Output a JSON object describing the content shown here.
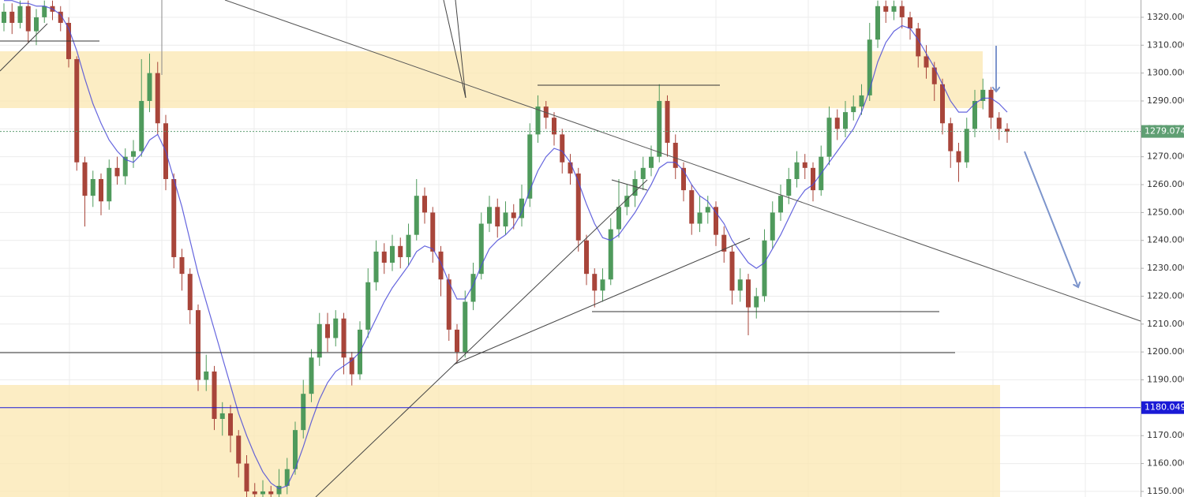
{
  "chart_data": {
    "type": "candlestick",
    "ylim": [
      1148,
      1326.2
    ],
    "yticks": [
      {
        "value": 1150,
        "label": "1150.000"
      },
      {
        "value": 1160,
        "label": "1160.000"
      },
      {
        "value": 1170,
        "label": "1170.000"
      },
      {
        "value": 1190,
        "label": "1190.000"
      },
      {
        "value": 1200,
        "label": "1200.000"
      },
      {
        "value": 1210,
        "label": "1210.000"
      },
      {
        "value": 1220,
        "label": "1220.000"
      },
      {
        "value": 1230,
        "label": "1230.000"
      },
      {
        "value": 1240,
        "label": "1240.000"
      },
      {
        "value": 1250,
        "label": "1250.000"
      },
      {
        "value": 1260,
        "label": "1260.000"
      },
      {
        "value": 1270,
        "label": "1270.000"
      },
      {
        "value": 1280,
        "label": "1280.000"
      },
      {
        "value": 1290,
        "label": "1290.000"
      },
      {
        "value": 1300,
        "label": "1300.000"
      },
      {
        "value": 1310,
        "label": "1310.000"
      },
      {
        "value": 1320,
        "label": "1320.000"
      }
    ],
    "grid": true,
    "up_color": "#4f9a5c",
    "down_color": "#a8453a",
    "open": [
      1318,
      1322,
      1318,
      1324,
      1315,
      1320,
      1324,
      1322,
      1318,
      1305,
      1268,
      1256,
      1262,
      1254,
      1266,
      1263,
      1270,
      1272,
      1290,
      1300,
      1282,
      1262,
      1234,
      1228,
      1215,
      1190,
      1193,
      1176,
      1178,
      1170,
      1160,
      1150,
      1149,
      1150,
      1149,
      1152,
      1158,
      1172,
      1185,
      1198,
      1210,
      1205,
      1212,
      1198,
      1192,
      1208,
      1225,
      1236,
      1232,
      1238,
      1234,
      1242,
      1256,
      1250,
      1236,
      1226,
      1208,
      1200,
      1218,
      1228,
      1246,
      1252,
      1245,
      1250,
      1248,
      1255,
      1278,
      1288,
      1284,
      1278,
      1268,
      1264,
      1240,
      1228,
      1222,
      1226,
      1244,
      1252,
      1256,
      1262,
      1266,
      1270,
      1290,
      1275,
      1266,
      1258,
      1246,
      1250,
      1252,
      1242,
      1236,
      1222,
      1226,
      1216,
      1220,
      1240,
      1250,
      1256,
      1262,
      1268,
      1266,
      1258,
      1270,
      1284,
      1280,
      1286,
      1288,
      1292,
      1312,
      1324,
      1322,
      1324,
      1320,
      1316,
      1306,
      1302,
      1296,
      1282,
      1272,
      1268,
      1280,
      1290,
      1294,
      1284,
      1280
    ],
    "high": [
      1325,
      1325,
      1326,
      1326,
      1323,
      1326,
      1326,
      1324,
      1320,
      1306,
      1270,
      1265,
      1264,
      1269,
      1270,
      1273,
      1276,
      1305,
      1307,
      1304,
      1285,
      1264,
      1237,
      1230,
      1217,
      1199,
      1195,
      1182,
      1181,
      1172,
      1163,
      1153,
      1154,
      1152,
      1158,
      1162,
      1175,
      1190,
      1201,
      1214,
      1214,
      1215,
      1214,
      1200,
      1211,
      1230,
      1240,
      1239,
      1242,
      1241,
      1246,
      1262,
      1259,
      1252,
      1238,
      1228,
      1210,
      1222,
      1232,
      1250,
      1256,
      1255,
      1254,
      1253,
      1260,
      1282,
      1292,
      1290,
      1286,
      1280,
      1271,
      1266,
      1242,
      1230,
      1230,
      1248,
      1262,
      1260,
      1265,
      1270,
      1274,
      1296,
      1292,
      1278,
      1268,
      1260,
      1256,
      1256,
      1254,
      1245,
      1238,
      1230,
      1228,
      1223,
      1244,
      1254,
      1260,
      1266,
      1272,
      1271,
      1268,
      1274,
      1288,
      1287,
      1290,
      1292,
      1296,
      1318,
      1326,
      1326,
      1326,
      1326,
      1322,
      1318,
      1310,
      1304,
      1298,
      1284,
      1275,
      1284,
      1294,
      1298,
      1295,
      1286,
      1282
    ],
    "low": [
      1315,
      1314,
      1316,
      1311,
      1310,
      1318,
      1319,
      1315,
      1302,
      1265,
      1245,
      1252,
      1249,
      1251,
      1260,
      1260,
      1266,
      1270,
      1286,
      1278,
      1258,
      1230,
      1222,
      1210,
      1186,
      1186,
      1172,
      1170,
      1164,
      1155,
      1146,
      1145,
      1145,
      1145,
      1146,
      1149,
      1156,
      1169,
      1182,
      1195,
      1200,
      1202,
      1192,
      1188,
      1190,
      1205,
      1222,
      1228,
      1229,
      1230,
      1231,
      1240,
      1246,
      1232,
      1220,
      1204,
      1196,
      1198,
      1215,
      1226,
      1243,
      1241,
      1242,
      1244,
      1245,
      1252,
      1275,
      1280,
      1274,
      1264,
      1260,
      1236,
      1224,
      1216,
      1218,
      1224,
      1241,
      1249,
      1252,
      1258,
      1263,
      1268,
      1270,
      1262,
      1254,
      1242,
      1243,
      1246,
      1238,
      1232,
      1217,
      1218,
      1206,
      1212,
      1218,
      1237,
      1247,
      1253,
      1259,
      1262,
      1254,
      1256,
      1267,
      1276,
      1277,
      1283,
      1285,
      1290,
      1309,
      1318,
      1319,
      1316,
      1312,
      1302,
      1298,
      1290,
      1278,
      1266,
      1261,
      1266,
      1277,
      1287,
      1280,
      1276,
      1275
    ],
    "close": [
      1322,
      1318,
      1324,
      1315,
      1320,
      1324,
      1322,
      1318,
      1305,
      1268,
      1256,
      1262,
      1254,
      1266,
      1263,
      1270,
      1272,
      1290,
      1300,
      1282,
      1262,
      1234,
      1228,
      1215,
      1190,
      1193,
      1176,
      1178,
      1170,
      1160,
      1150,
      1149,
      1150,
      1149,
      1152,
      1158,
      1172,
      1185,
      1198,
      1210,
      1205,
      1212,
      1198,
      1192,
      1208,
      1225,
      1236,
      1232,
      1238,
      1234,
      1242,
      1256,
      1250,
      1236,
      1226,
      1208,
      1200,
      1218,
      1228,
      1246,
      1252,
      1245,
      1250,
      1248,
      1255,
      1278,
      1288,
      1284,
      1278,
      1268,
      1264,
      1240,
      1228,
      1222,
      1226,
      1244,
      1252,
      1256,
      1262,
      1266,
      1270,
      1290,
      1275,
      1266,
      1258,
      1246,
      1250,
      1252,
      1242,
      1236,
      1222,
      1226,
      1216,
      1220,
      1240,
      1250,
      1256,
      1262,
      1268,
      1266,
      1258,
      1270,
      1284,
      1280,
      1286,
      1288,
      1292,
      1312,
      1324,
      1322,
      1324,
      1320,
      1316,
      1306,
      1302,
      1296,
      1282,
      1272,
      1268,
      1280,
      1290,
      1294,
      1284,
      1280,
      1279
    ],
    "ma": [
      1326,
      1326,
      1325,
      1325,
      1324,
      1324,
      1323,
      1321,
      1316,
      1308,
      1298,
      1289,
      1282,
      1276,
      1272,
      1269,
      1268,
      1271,
      1276,
      1278,
      1272,
      1262,
      1252,
      1240,
      1228,
      1218,
      1208,
      1198,
      1188,
      1178,
      1170,
      1163,
      1157,
      1153,
      1151,
      1152,
      1158,
      1166,
      1175,
      1183,
      1189,
      1193,
      1195,
      1197,
      1200,
      1206,
      1212,
      1218,
      1223,
      1227,
      1231,
      1236,
      1238,
      1237,
      1232,
      1225,
      1219,
      1219,
      1224,
      1231,
      1237,
      1240,
      1242,
      1245,
      1250,
      1258,
      1265,
      1270,
      1273,
      1272,
      1268,
      1261,
      1253,
      1246,
      1241,
      1240,
      1242,
      1246,
      1250,
      1255,
      1260,
      1266,
      1268,
      1268,
      1265,
      1260,
      1256,
      1254,
      1250,
      1246,
      1240,
      1236,
      1232,
      1230,
      1232,
      1237,
      1242,
      1248,
      1254,
      1258,
      1260,
      1264,
      1268,
      1272,
      1276,
      1280,
      1286,
      1294,
      1304,
      1311,
      1315,
      1317,
      1316,
      1312,
      1307,
      1302,
      1296,
      1290,
      1286,
      1286,
      1289,
      1291,
      1291,
      1289,
      1286
    ],
    "ma_color": "#4a4ad8",
    "price_lines": [
      {
        "value": 1279.074,
        "color": "#5f9f73"
      },
      {
        "value": 1180.049,
        "color": "#1a1ad6"
      }
    ]
  }
}
